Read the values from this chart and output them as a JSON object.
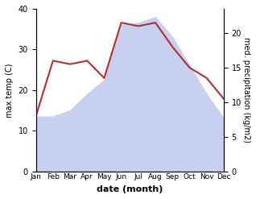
{
  "months": [
    "Jan",
    "Feb",
    "Mar",
    "Apr",
    "May",
    "Jun",
    "Jul",
    "Aug",
    "Sep",
    "Oct",
    "Nov",
    "Dec"
  ],
  "temp": [
    13.5,
    13.5,
    15.0,
    19.0,
    22.5,
    36.0,
    36.5,
    38.0,
    33.0,
    26.0,
    19.0,
    13.0
  ],
  "precip": [
    8.0,
    16.0,
    15.5,
    16.0,
    13.5,
    21.5,
    21.0,
    21.5,
    18.0,
    15.0,
    13.5,
    10.5
  ],
  "precip_color": "#b03030",
  "temp_fill_color": "#c8d0f0",
  "ylabel_left": "max temp (C)",
  "ylabel_right": "med. precipitation (kg/m2)",
  "xlabel": "date (month)",
  "ylim_left": [
    0,
    40
  ],
  "ylim_right": [
    0,
    23.5
  ],
  "yticks_left": [
    0,
    10,
    20,
    30,
    40
  ],
  "yticks_right": [
    0,
    5,
    10,
    15,
    20
  ],
  "background_color": "#ffffff"
}
